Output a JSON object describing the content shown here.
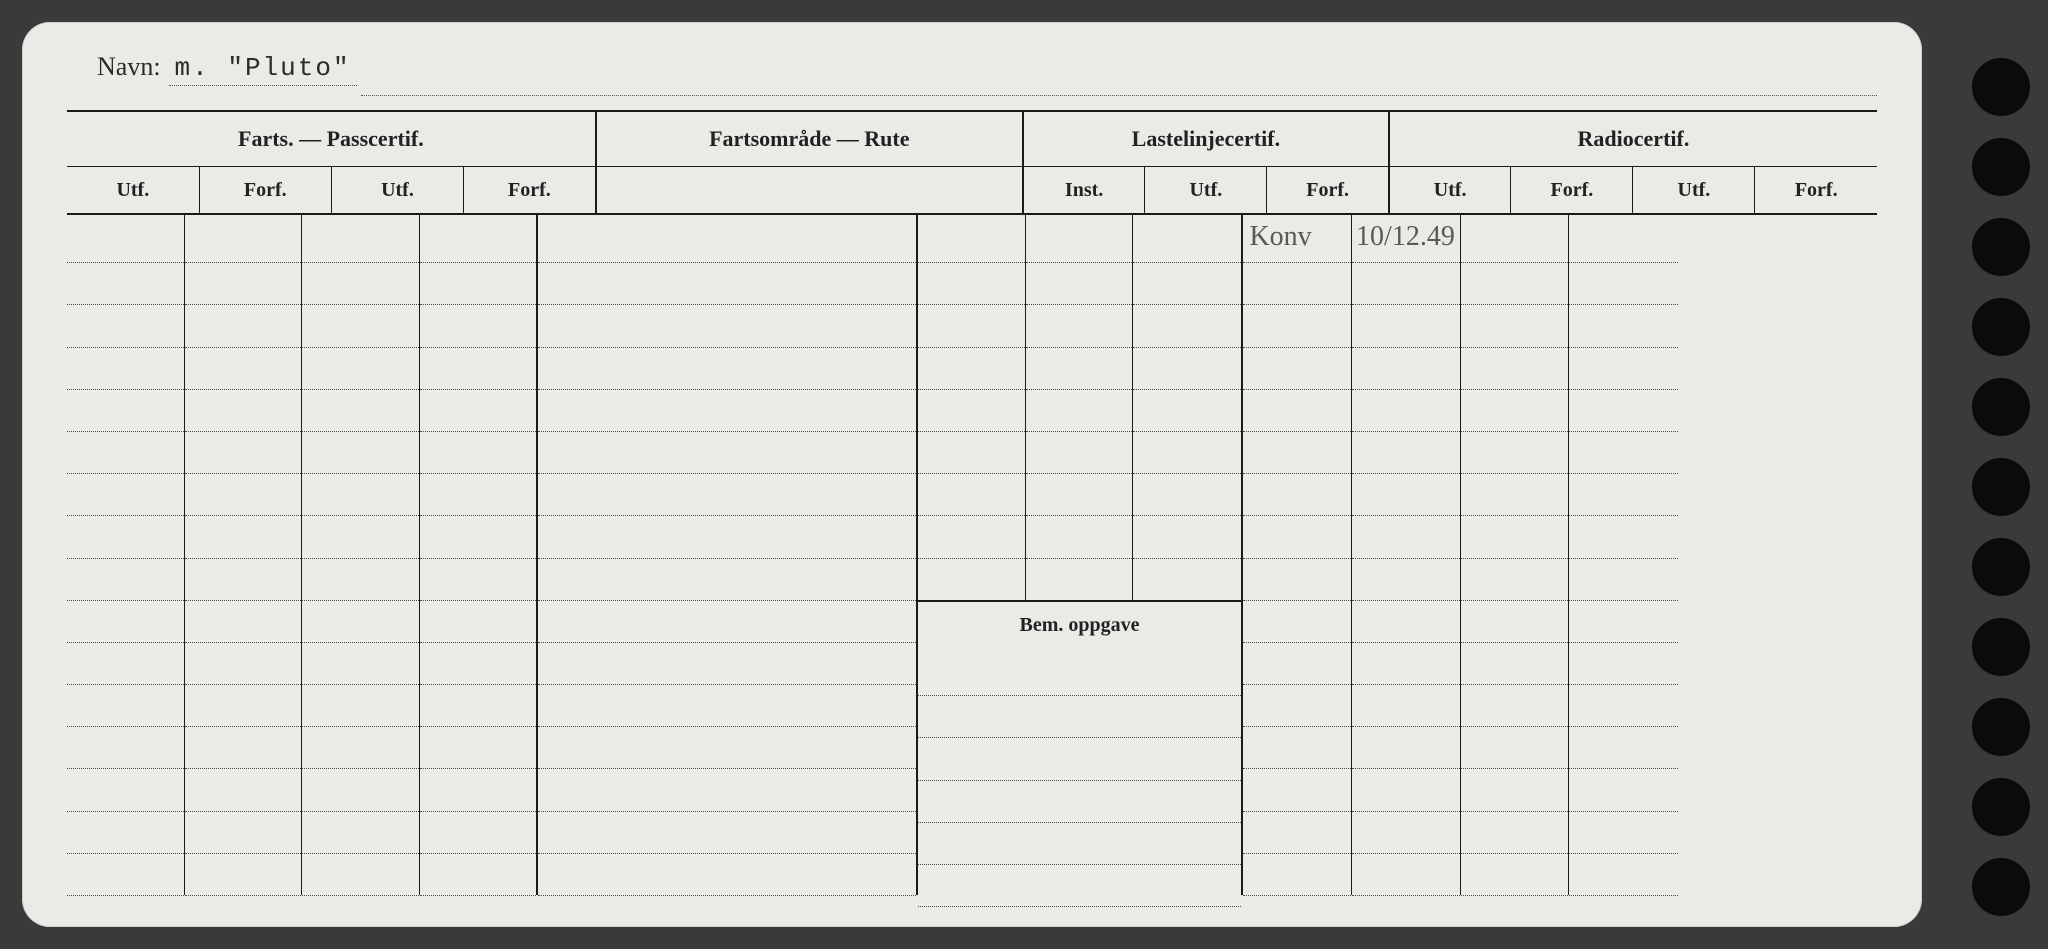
{
  "navn": {
    "label": "Navn:",
    "value": "m. \"Pluto\""
  },
  "sections": {
    "farts": "Farts. — Passcertif.",
    "farts_rute": "Fartsområde — Rute",
    "laste": "Lastelinjecertif.",
    "radio": "Radiocertif."
  },
  "subheads": {
    "utf": "Utf.",
    "forf": "Forf.",
    "inst": "Inst."
  },
  "bem": "Bem. oppgave",
  "handwriting": {
    "radio_utf": "Konv",
    "radio_forf": "10/12.49"
  },
  "layout": {
    "col_widths_pct": [
      6.5,
      6.5,
      6.5,
      6.5,
      21.0,
      6.0,
      6.0,
      6.0,
      6.0,
      6.0,
      6.0,
      6.0
    ],
    "rows_upper": 9,
    "rows_lower": 6,
    "rows_full": 16
  },
  "colors": {
    "paper": "#e8ebe6",
    "ink": "#1a1a1a",
    "dot": "#4a4a4a",
    "hand": "#5a5a52"
  }
}
